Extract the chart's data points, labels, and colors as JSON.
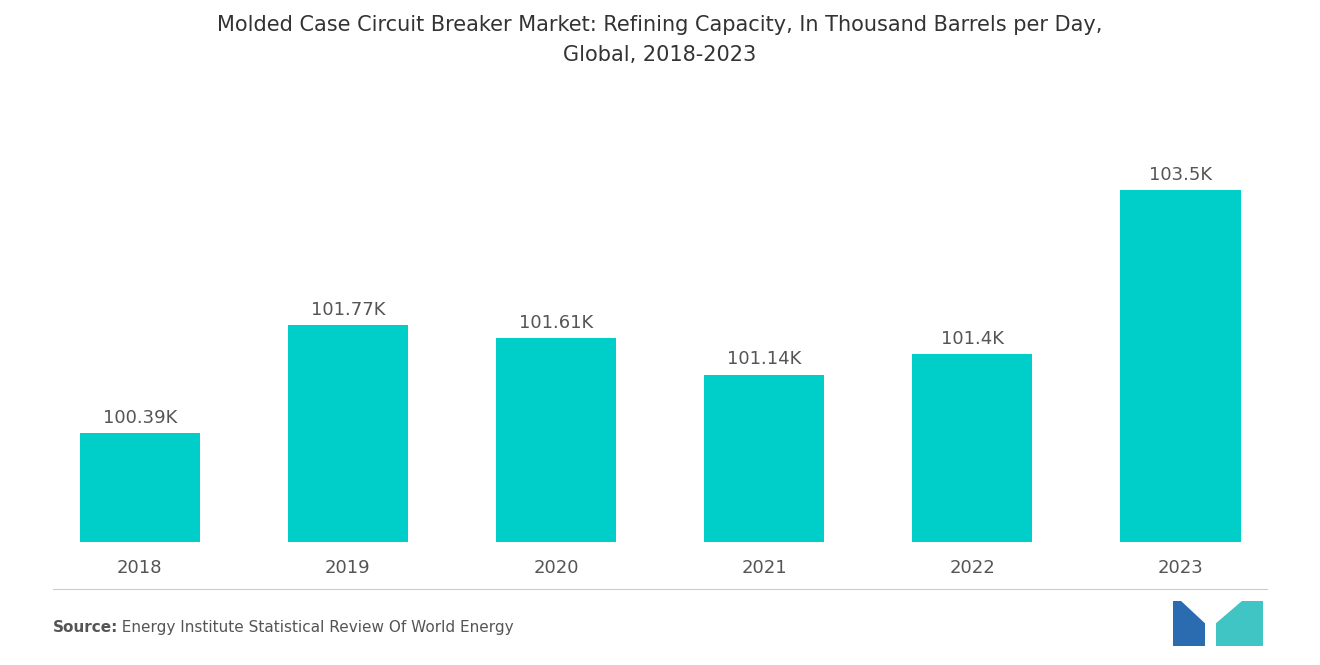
{
  "title": "Molded Case Circuit Breaker Market: Refining Capacity, In Thousand Barrels per Day,\nGlobal, 2018-2023",
  "years": [
    "2018",
    "2019",
    "2020",
    "2021",
    "2022",
    "2023"
  ],
  "values": [
    100.39,
    101.77,
    101.61,
    101.14,
    101.4,
    103.5
  ],
  "labels": [
    "100.39K",
    "101.77K",
    "101.61K",
    "101.14K",
    "101.4K",
    "103.5K"
  ],
  "bar_color": "#00CEC8",
  "background_color": "#ffffff",
  "ylim_min": 99.0,
  "ylim_max": 104.8,
  "title_fontsize": 15,
  "label_fontsize": 13,
  "tick_fontsize": 13,
  "source_bold": "Source:",
  "source_normal": "  Energy Institute Statistical Review Of World Energy",
  "source_fontsize": 11
}
